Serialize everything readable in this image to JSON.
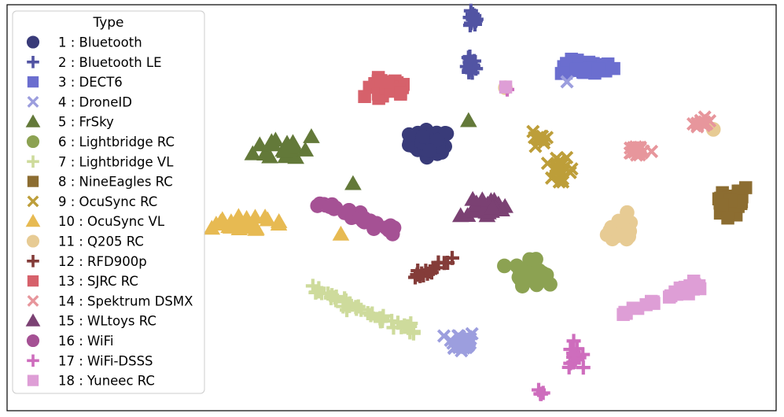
{
  "chart_data": {
    "type": "scatter",
    "title": "",
    "xlabel": "",
    "ylabel": "",
    "grid": false,
    "axes_ticks": false,
    "legend": {
      "title": "Type",
      "placement": "top-left"
    },
    "x_range": [
      0,
      100
    ],
    "y_range": [
      0,
      100
    ],
    "series": [
      {
        "name": "1 : Bluetooth",
        "marker": "circle",
        "color": "#393b79",
        "clusters": [
          {
            "x": 55.0,
            "y": 66.2,
            "sx": 2.2,
            "sy": 2.4,
            "n": 60
          }
        ]
      },
      {
        "name": "2 : Bluetooth LE",
        "marker": "plus",
        "color": "#5254a3",
        "clusters": [
          {
            "x": 60.5,
            "y": 96.1,
            "sx": 0.5,
            "sy": 1.6,
            "n": 14
          },
          {
            "x": 60.2,
            "y": 85.0,
            "sx": 0.6,
            "sy": 2.2,
            "n": 16
          }
        ]
      },
      {
        "name": "3 : DECT6",
        "marker": "square",
        "color": "#6b6ecf",
        "clusters": [
          {
            "x": 75.5,
            "y": 84.5,
            "sx": 3.0,
            "sy": 1.6,
            "n": 28
          }
        ]
      },
      {
        "name": "4 : DroneID",
        "marker": "x",
        "color": "#9c9ede",
        "clusters": [
          {
            "x": 59.0,
            "y": 17.0,
            "sx": 1.6,
            "sy": 2.2,
            "n": 30
          },
          {
            "x": 72.8,
            "y": 81.0,
            "sx": 0.1,
            "sy": 0.1,
            "n": 1
          }
        ]
      },
      {
        "name": "5 : FrSky",
        "marker": "triangle",
        "color": "#637939",
        "clusters": [
          {
            "x": 36.5,
            "y": 64.8,
            "sx": 3.5,
            "sy": 3.0,
            "n": 20
          },
          {
            "x": 45.0,
            "y": 56.0,
            "sx": 0.2,
            "sy": 0.2,
            "n": 1
          },
          {
            "x": 60.0,
            "y": 71.5,
            "sx": 0.1,
            "sy": 0.1,
            "n": 1
          }
        ]
      },
      {
        "name": "6 : Lightbridge RC",
        "marker": "circle",
        "color": "#8ca252",
        "clusters": [
          {
            "x": 68.0,
            "y": 34.0,
            "sx": 1.6,
            "sy": 2.4,
            "n": 40
          }
        ]
      },
      {
        "name": "7 : Lightbridge VL",
        "marker": "plus",
        "color": "#cedb9c",
        "clusters": [
          {
            "x": 46.8,
            "y": 24.4,
            "sx": 5.0,
            "sy": 4.0,
            "n": 45,
            "line": true
          }
        ]
      },
      {
        "name": "8 : NineEagles RC",
        "marker": "square",
        "color": "#8c6d31",
        "clusters": [
          {
            "x": 94.3,
            "y": 51.5,
            "sx": 1.4,
            "sy": 2.8,
            "n": 28
          }
        ]
      },
      {
        "name": "9 : OcuSync RC",
        "marker": "x",
        "color": "#bd9e39",
        "clusters": [
          {
            "x": 69.2,
            "y": 67.5,
            "sx": 0.8,
            "sy": 1.2,
            "n": 10
          },
          {
            "x": 71.5,
            "y": 59.0,
            "sx": 1.2,
            "sy": 2.4,
            "n": 24
          }
        ]
      },
      {
        "name": "10 : OcuSync VL",
        "marker": "triangle",
        "color": "#e7ba52",
        "clusters": [
          {
            "x": 31.0,
            "y": 46.0,
            "sx": 4.0,
            "sy": 1.6,
            "n": 24
          },
          {
            "x": 43.5,
            "y": 43.5,
            "sx": 0.1,
            "sy": 0.1,
            "n": 1
          }
        ]
      },
      {
        "name": "11 : Q205 RC",
        "marker": "circle",
        "color": "#e7cb94",
        "clusters": [
          {
            "x": 79.5,
            "y": 44.5,
            "sx": 1.6,
            "sy": 2.4,
            "n": 32
          },
          {
            "x": 64.7,
            "y": 79.5,
            "sx": 0.1,
            "sy": 0.1,
            "n": 1
          },
          {
            "x": 91.8,
            "y": 69.3,
            "sx": 0.1,
            "sy": 0.1,
            "n": 1
          }
        ]
      },
      {
        "name": "12 : RFD900p",
        "marker": "plus",
        "color": "#843c39",
        "clusters": [
          {
            "x": 55.5,
            "y": 35.0,
            "sx": 2.0,
            "sy": 2.0,
            "n": 16,
            "line": true
          }
        ]
      },
      {
        "name": "13 : SJRC RC",
        "marker": "square",
        "color": "#d6616b",
        "clusters": [
          {
            "x": 49.2,
            "y": 79.8,
            "sx": 2.5,
            "sy": 1.6,
            "n": 30
          }
        ]
      },
      {
        "name": "14 : Spektrum DSMX",
        "marker": "x",
        "color": "#e7969c",
        "clusters": [
          {
            "x": 90.5,
            "y": 71.0,
            "sx": 1.0,
            "sy": 1.2,
            "n": 12
          },
          {
            "x": 82.0,
            "y": 64.0,
            "sx": 1.2,
            "sy": 1.4,
            "n": 16
          }
        ]
      },
      {
        "name": "15 : WLtoys RC",
        "marker": "triangle",
        "color": "#7b4173",
        "clusters": [
          {
            "x": 62.0,
            "y": 50.0,
            "sx": 2.4,
            "sy": 1.8,
            "n": 28
          },
          {
            "x": 60.5,
            "y": 52.0,
            "sx": 0.1,
            "sy": 0.1,
            "n": 1
          }
        ]
      },
      {
        "name": "16 : WiFi",
        "marker": "circle",
        "color": "#a55194",
        "clusters": [
          {
            "x": 45.8,
            "y": 47.5,
            "sx": 3.8,
            "sy": 2.8,
            "n": 36,
            "line": true
          }
        ]
      },
      {
        "name": "17 : WiFi-DSSS",
        "marker": "plus",
        "color": "#ce6dbd",
        "clusters": [
          {
            "x": 73.5,
            "y": 13.5,
            "sx": 1.2,
            "sy": 2.4,
            "n": 16
          },
          {
            "x": 69.5,
            "y": 4.0,
            "sx": 0.3,
            "sy": 1.0,
            "n": 4
          },
          {
            "x": 65.0,
            "y": 79.0,
            "sx": 0.1,
            "sy": 0.1,
            "n": 1
          }
        ]
      },
      {
        "name": "18 : Yuneec RC",
        "marker": "square",
        "color": "#de9ed6",
        "clusters": [
          {
            "x": 85.0,
            "y": 27.5,
            "sx": 3.5,
            "sy": 2.4,
            "n": 30,
            "line": true
          },
          {
            "x": 64.8,
            "y": 79.8,
            "sx": 0.1,
            "sy": 0.1,
            "n": 1
          }
        ]
      }
    ]
  }
}
